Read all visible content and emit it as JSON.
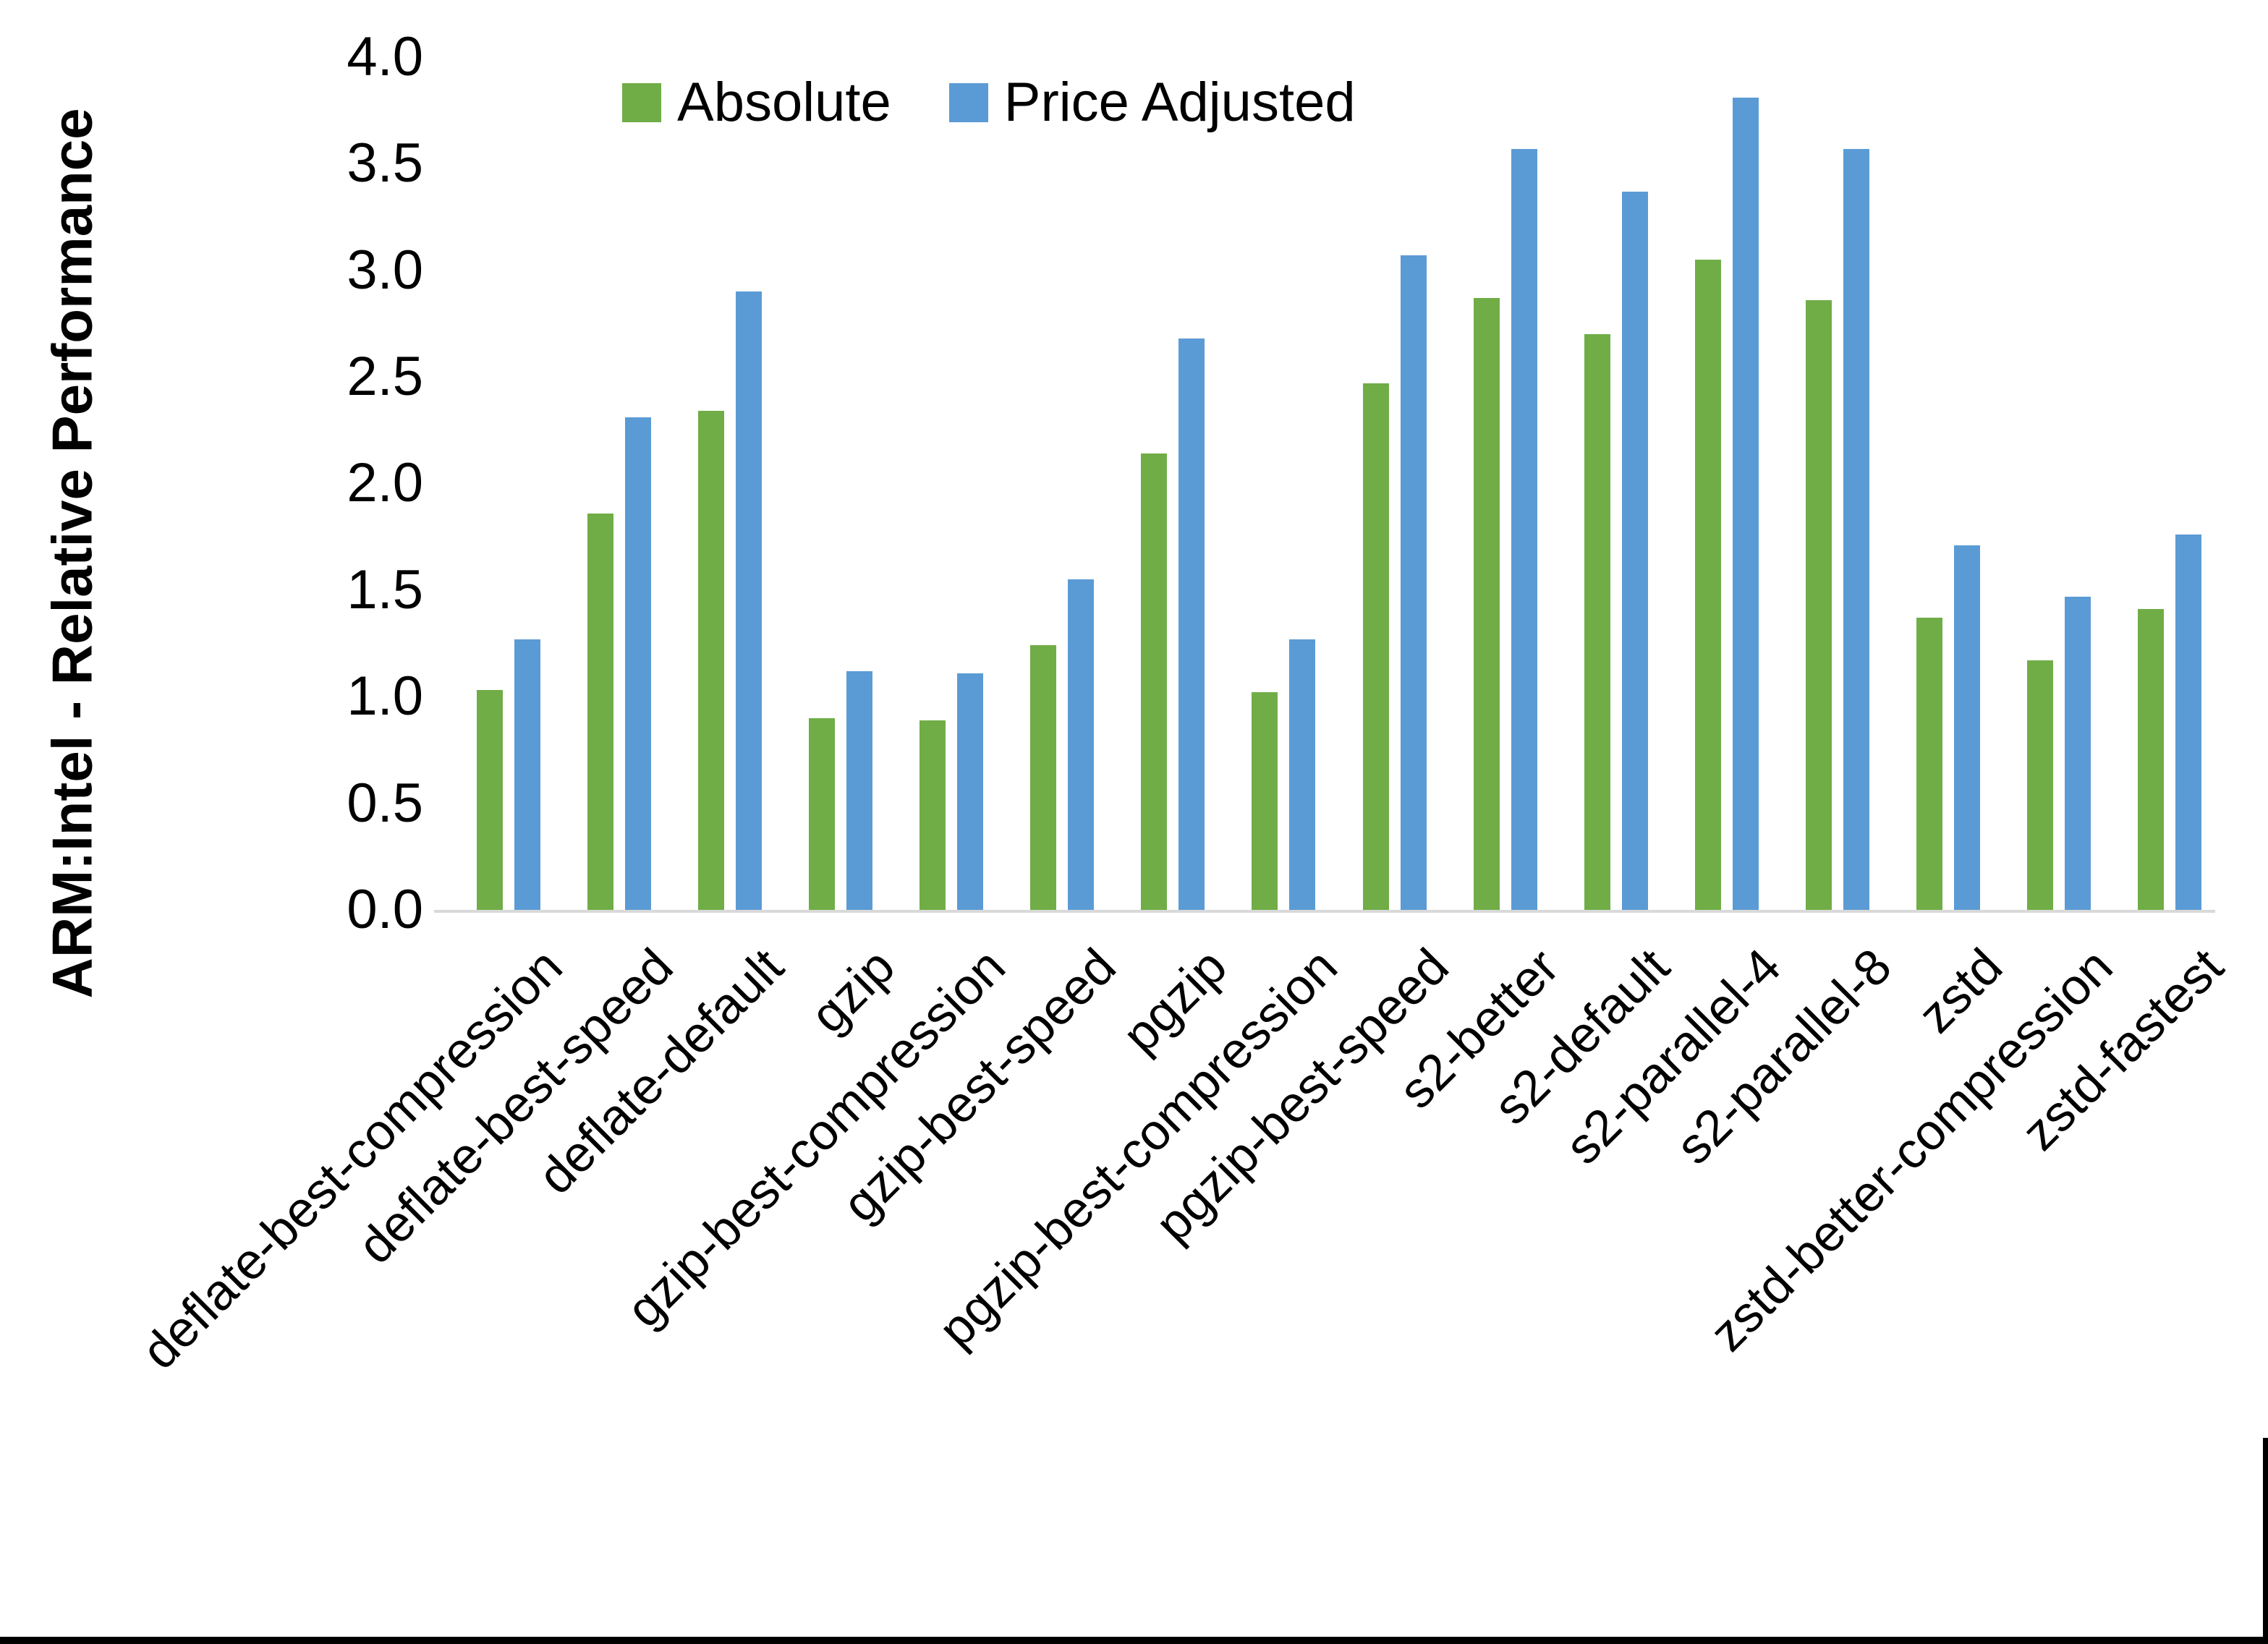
{
  "chart_data": {
    "type": "bar",
    "title": "",
    "xlabel": "",
    "ylabel": "ARM:Intel - Relative Performance",
    "ylim": [
      0.0,
      4.0
    ],
    "ytick_step": 0.5,
    "yticks": [
      "0.0",
      "0.5",
      "1.0",
      "1.5",
      "2.0",
      "2.5",
      "3.0",
      "3.5",
      "4.0"
    ],
    "grid": false,
    "legend_position": "top-center",
    "categories": [
      "deflate-best-compression",
      "deflate-best-speed",
      "deflate-default",
      "gzip",
      "gzip-best-compression",
      "gzip-best-speed",
      "pgzip",
      "pgzip-best-compression",
      "pgzip-best-speed",
      "s2-better",
      "s2-default",
      "s2-parallel-4",
      "s2-parallel-8",
      "zstd",
      "zstd-better-compression",
      "zstd-fastest"
    ],
    "series": [
      {
        "name": "Absolute",
        "color": "#70AD47",
        "values": [
          1.03,
          1.86,
          2.34,
          0.9,
          0.89,
          1.24,
          2.14,
          1.02,
          2.47,
          2.87,
          2.7,
          3.05,
          2.86,
          1.37,
          1.17,
          1.41
        ]
      },
      {
        "name": "Price Adjusted",
        "color": "#5B9BD5",
        "values": [
          1.27,
          2.31,
          2.9,
          1.12,
          1.11,
          1.55,
          2.68,
          1.27,
          3.07,
          3.57,
          3.37,
          3.81,
          3.57,
          1.71,
          1.47,
          1.76
        ]
      }
    ],
    "frame_color": "#000000",
    "axis_line_color": "#D9D9D9"
  }
}
